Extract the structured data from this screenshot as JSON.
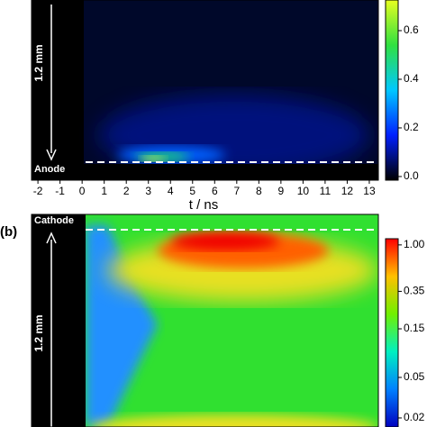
{
  "chart_data": [
    {
      "type": "heatmap",
      "xlabel": "t / ns",
      "ylabel": "1.2 mm",
      "annotation": "Anode",
      "xlim": [
        -2.29,
        13.41
      ],
      "xticks": [
        -2,
        -1,
        0,
        1,
        2,
        3,
        4,
        5,
        6,
        7,
        8,
        9,
        10,
        11,
        12,
        13
      ],
      "colorbar": {
        "lim": [
          -0.015,
          0.726
        ],
        "ticks": [
          {
            "value": 0,
            "label": "0.0"
          },
          0.2,
          0.4,
          0.6
        ],
        "log": false
      }
    },
    {
      "type": "heatmap",
      "panel_label": "(b)",
      "ylabel": "1.2 mm",
      "annotation": "Cathode",
      "colorbar": {
        "lim": [
          0.0163,
          1.15
        ],
        "ticks": [
          0.02,
          0.05,
          0.15,
          0.35,
          {
            "value": 1,
            "label": "1.00"
          }
        ],
        "log": true
      }
    }
  ]
}
